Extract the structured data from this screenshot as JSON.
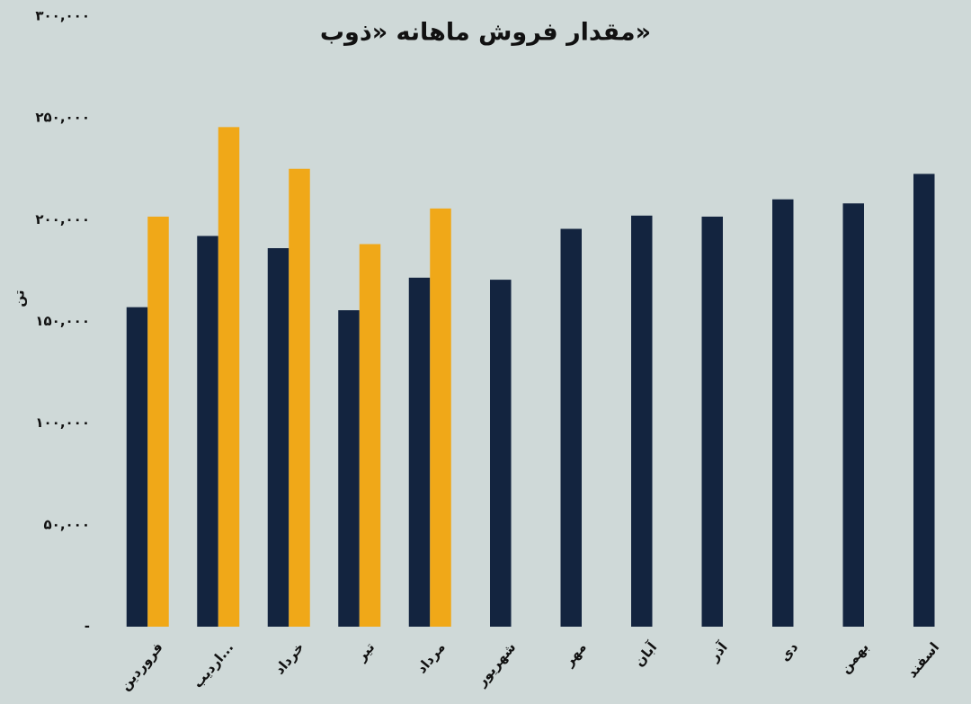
{
  "chart_data": {
    "type": "bar",
    "title": "مقدار فروش ماهانه «ذوب»",
    "y_label": "تن",
    "categories": [
      "فروردین",
      "اردیب...",
      "خرداد",
      "تیر",
      "مرداد",
      "شهریور",
      "مهر",
      "آبان",
      "آذر",
      "دی",
      "بهمن",
      "اسفند"
    ],
    "series": [
      {
        "color": "#13243f",
        "values": [
          157000,
          192000,
          186000,
          155500,
          171500,
          170500,
          195500,
          202000,
          201500,
          210000,
          208000,
          222500
        ]
      },
      {
        "color": "#f0a818",
        "values": [
          201500,
          245500,
          225000,
          188000,
          205500,
          null,
          null,
          null,
          null,
          null,
          null,
          null
        ]
      }
    ],
    "ylim": [
      0,
      300000
    ],
    "yticks": [
      {
        "value": 0,
        "label": "-"
      },
      {
        "value": 50000,
        "label": "۵۰,۰۰۰"
      },
      {
        "value": 100000,
        "label": "۱۰۰,۰۰۰"
      },
      {
        "value": 150000,
        "label": "۱۵۰,۰۰۰"
      },
      {
        "value": 200000,
        "label": "۲۰۰,۰۰۰"
      },
      {
        "value": 250000,
        "label": "۲۵۰,۰۰۰"
      },
      {
        "value": 300000,
        "label": "۳۰۰,۰۰۰"
      }
    ],
    "grid": false
  }
}
